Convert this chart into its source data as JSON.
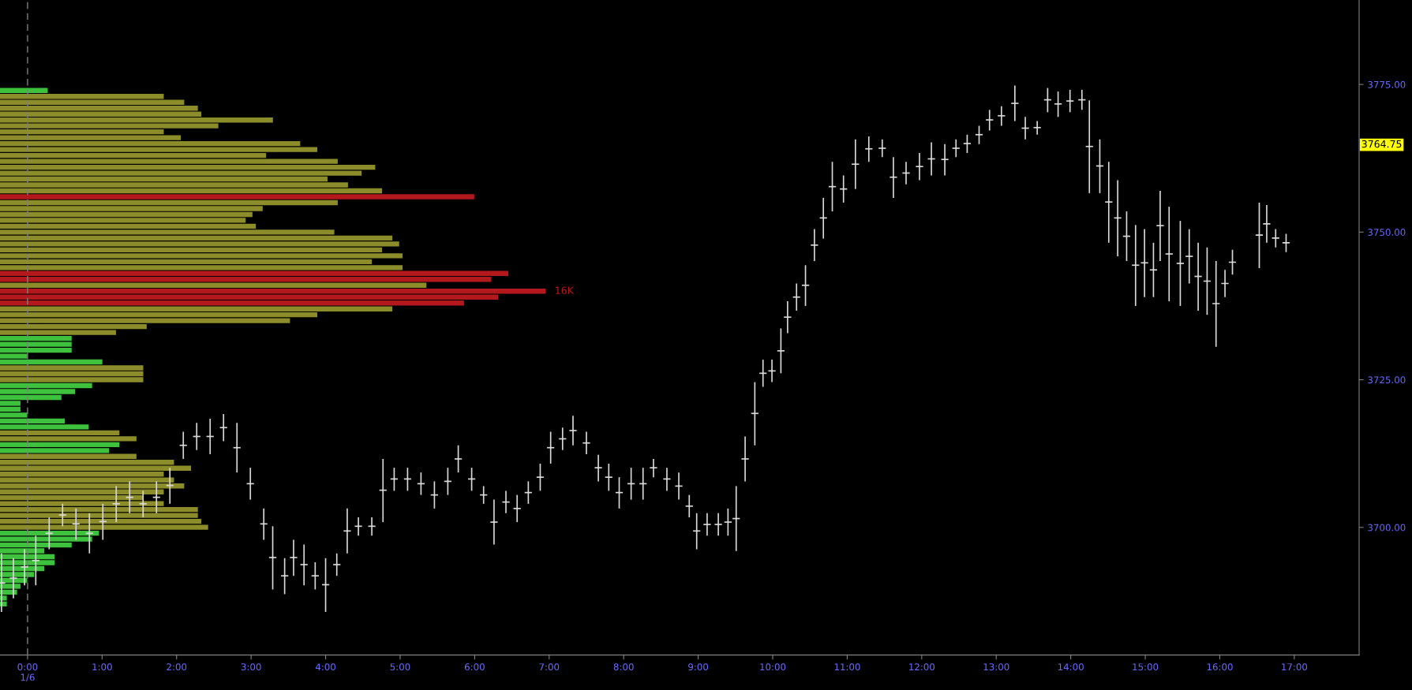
{
  "chart_data": [
    {
      "type": "candlestick",
      "color": "#d9d9d9",
      "x": [
        -0.35,
        -0.19,
        -0.04,
        0.11,
        0.29,
        0.47,
        0.65,
        0.83,
        1.01,
        1.19,
        1.37,
        1.55,
        1.73,
        1.91,
        2.09,
        2.27,
        2.45,
        2.63,
        2.81,
        2.99,
        3.17,
        3.29,
        3.45,
        3.57,
        3.71,
        3.86,
        4.0,
        4.15,
        4.29,
        4.44,
        4.62,
        4.77,
        4.92,
        5.1,
        5.28,
        5.46,
        5.64,
        5.78,
        5.96,
        6.12,
        6.26,
        6.42,
        6.57,
        6.72,
        6.88,
        7.02,
        7.18,
        7.32,
        7.5,
        7.66,
        7.8,
        7.94,
        8.1,
        8.26,
        8.4,
        8.58,
        8.74,
        8.88,
        8.98,
        9.12,
        9.27,
        9.4,
        9.51,
        9.63,
        9.76,
        9.87,
        9.99,
        10.11,
        10.2,
        10.32,
        10.44,
        10.56,
        10.68,
        10.8,
        10.95,
        11.11,
        11.29,
        11.47,
        11.62,
        11.79,
        11.97,
        12.13,
        12.31,
        12.46,
        12.61,
        12.77,
        12.91,
        13.07,
        13.25,
        13.39,
        13.55,
        13.69,
        13.83,
        13.99,
        14.15,
        14.25,
        14.39,
        14.51,
        14.63,
        14.75,
        14.87,
        14.99,
        15.11,
        15.2,
        15.32,
        15.47,
        15.59,
        15.71,
        15.83,
        15.95,
        16.07,
        16.17,
        16.53,
        16.63,
        16.75,
        16.89
      ],
      "ohlc": [
        [
          3690.6,
          3695.6,
          3685.7,
          3690.6
        ],
        [
          3691.4,
          3694.8,
          3688.0,
          3691.4
        ],
        [
          3693.3,
          3696.3,
          3690.2,
          3693.3
        ],
        [
          3694.4,
          3698.6,
          3690.2,
          3694.4
        ],
        [
          3699.0,
          3701.7,
          3696.3,
          3699.0
        ],
        [
          3702.1,
          3704.0,
          3700.2,
          3702.1
        ],
        [
          3700.6,
          3703.2,
          3697.9,
          3700.6
        ],
        [
          3699.0,
          3702.4,
          3695.6,
          3699.0
        ],
        [
          3701.0,
          3704.0,
          3697.9,
          3701.0
        ],
        [
          3704.0,
          3707.0,
          3700.9,
          3704.0
        ],
        [
          3705.1,
          3707.8,
          3702.4,
          3705.1
        ],
        [
          3704.0,
          3706.2,
          3701.7,
          3704.0
        ],
        [
          3705.1,
          3707.8,
          3702.4,
          3705.1
        ],
        [
          3707.1,
          3710.1,
          3704.0,
          3707.1
        ],
        [
          3713.9,
          3716.2,
          3711.6,
          3713.9
        ],
        [
          3715.4,
          3717.7,
          3713.1,
          3715.4
        ],
        [
          3715.4,
          3718.4,
          3712.4,
          3715.4
        ],
        [
          3716.9,
          3719.2,
          3714.6,
          3716.9
        ],
        [
          3713.5,
          3717.7,
          3709.3,
          3713.5
        ],
        [
          3707.4,
          3710.1,
          3704.7,
          3707.4
        ],
        [
          3700.6,
          3703.2,
          3697.9,
          3700.6
        ],
        [
          3694.9,
          3700.2,
          3689.5,
          3694.9
        ],
        [
          3691.8,
          3694.8,
          3688.7,
          3691.8
        ],
        [
          3694.9,
          3697.9,
          3691.8,
          3694.9
        ],
        [
          3693.7,
          3697.1,
          3690.2,
          3693.7
        ],
        [
          3691.8,
          3694.1,
          3689.5,
          3691.8
        ],
        [
          3690.3,
          3694.8,
          3685.7,
          3690.3
        ],
        [
          3693.7,
          3695.6,
          3691.8,
          3693.7
        ],
        [
          3699.4,
          3703.2,
          3695.6,
          3699.4
        ],
        [
          3700.2,
          3701.7,
          3698.6,
          3700.2
        ],
        [
          3700.2,
          3701.7,
          3698.6,
          3700.2
        ],
        [
          3706.3,
          3711.6,
          3700.9,
          3706.3
        ],
        [
          3708.2,
          3710.1,
          3706.2,
          3708.2
        ],
        [
          3708.2,
          3710.1,
          3706.2,
          3708.2
        ],
        [
          3707.4,
          3709.3,
          3705.5,
          3707.4
        ],
        [
          3705.5,
          3707.8,
          3703.2,
          3705.5
        ],
        [
          3707.8,
          3710.1,
          3705.5,
          3707.8
        ],
        [
          3711.6,
          3713.9,
          3709.3,
          3711.6
        ],
        [
          3708.2,
          3710.1,
          3706.2,
          3708.2
        ],
        [
          3705.5,
          3707.0,
          3704.0,
          3705.5
        ],
        [
          3700.9,
          3704.7,
          3697.1,
          3700.9
        ],
        [
          3704.3,
          3706.2,
          3702.4,
          3704.3
        ],
        [
          3703.2,
          3705.5,
          3700.9,
          3703.2
        ],
        [
          3705.9,
          3707.8,
          3704.0,
          3705.9
        ],
        [
          3708.5,
          3710.8,
          3706.2,
          3708.5
        ],
        [
          3713.5,
          3716.2,
          3710.8,
          3713.5
        ],
        [
          3715.0,
          3716.9,
          3713.1,
          3715.0
        ],
        [
          3716.4,
          3718.9,
          3713.9,
          3716.4
        ],
        [
          3714.3,
          3716.2,
          3712.4,
          3714.3
        ],
        [
          3710.1,
          3712.3,
          3707.8,
          3710.1
        ],
        [
          3708.5,
          3710.8,
          3706.2,
          3708.5
        ],
        [
          3705.9,
          3708.5,
          3703.2,
          3705.9
        ],
        [
          3707.4,
          3710.1,
          3704.7,
          3707.4
        ],
        [
          3707.4,
          3710.1,
          3704.7,
          3707.4
        ],
        [
          3710.1,
          3711.6,
          3708.5,
          3710.1
        ],
        [
          3708.2,
          3710.1,
          3706.2,
          3708.2
        ],
        [
          3707.0,
          3709.3,
          3704.7,
          3707.0
        ],
        [
          3703.6,
          3705.5,
          3701.7,
          3703.6
        ],
        [
          3699.4,
          3702.4,
          3696.3,
          3699.4
        ],
        [
          3700.5,
          3702.4,
          3698.6,
          3700.5
        ],
        [
          3700.5,
          3702.4,
          3698.6,
          3700.5
        ],
        [
          3700.9,
          3703.2,
          3698.6,
          3700.9
        ],
        [
          3701.5,
          3707.0,
          3696.0,
          3701.5
        ],
        [
          3711.6,
          3715.4,
          3707.8,
          3711.6
        ],
        [
          3719.3,
          3724.6,
          3713.9,
          3719.3
        ],
        [
          3726.1,
          3728.4,
          3723.8,
          3726.1
        ],
        [
          3726.5,
          3728.4,
          3724.6,
          3726.5
        ],
        [
          3729.9,
          3733.7,
          3726.1,
          3729.9
        ],
        [
          3735.6,
          3738.3,
          3732.9,
          3735.6
        ],
        [
          3739.0,
          3741.3,
          3736.7,
          3739.0
        ],
        [
          3741.0,
          3744.4,
          3737.5,
          3741.0
        ],
        [
          3747.8,
          3750.5,
          3745.1,
          3747.8
        ],
        [
          3752.4,
          3755.8,
          3748.9,
          3752.4
        ],
        [
          3757.7,
          3761.9,
          3753.5,
          3757.7
        ],
        [
          3757.3,
          3759.6,
          3755.0,
          3757.3
        ],
        [
          3761.5,
          3765.7,
          3757.3,
          3761.5
        ],
        [
          3764.1,
          3766.2,
          3761.9,
          3764.1
        ],
        [
          3764.2,
          3765.7,
          3762.7,
          3764.2
        ],
        [
          3759.3,
          3762.7,
          3755.8,
          3759.3
        ],
        [
          3760.0,
          3761.9,
          3758.1,
          3760.0
        ],
        [
          3761.1,
          3763.4,
          3758.8,
          3761.1
        ],
        [
          3762.4,
          3765.2,
          3759.6,
          3762.4
        ],
        [
          3762.3,
          3764.9,
          3759.6,
          3762.3
        ],
        [
          3764.2,
          3765.7,
          3762.7,
          3764.2
        ],
        [
          3765.0,
          3766.5,
          3763.4,
          3765.0
        ],
        [
          3766.5,
          3768.0,
          3764.9,
          3766.5
        ],
        [
          3769.0,
          3770.7,
          3767.2,
          3769.0
        ],
        [
          3769.7,
          3771.3,
          3768.0,
          3769.7
        ],
        [
          3771.8,
          3774.8,
          3768.8,
          3771.8
        ],
        [
          3767.6,
          3769.5,
          3765.7,
          3767.6
        ],
        [
          3767.7,
          3768.8,
          3766.5,
          3767.7
        ],
        [
          3772.4,
          3774.4,
          3770.3,
          3772.4
        ],
        [
          3771.7,
          3773.8,
          3769.5,
          3771.7
        ],
        [
          3772.2,
          3774.1,
          3770.3,
          3772.2
        ],
        [
          3772.4,
          3774.1,
          3770.7,
          3772.4
        ],
        [
          3764.5,
          3772.3,
          3756.6,
          3764.5
        ],
        [
          3761.2,
          3765.7,
          3756.6,
          3761.2
        ],
        [
          3755.1,
          3761.9,
          3748.2,
          3755.1
        ],
        [
          3752.4,
          3758.8,
          3745.9,
          3752.4
        ],
        [
          3749.3,
          3753.5,
          3745.1,
          3749.3
        ],
        [
          3744.4,
          3751.2,
          3737.5,
          3744.4
        ],
        [
          3744.8,
          3750.5,
          3739.0,
          3744.8
        ],
        [
          3743.6,
          3748.2,
          3739.0,
          3743.6
        ],
        [
          3751.1,
          3757.0,
          3745.1,
          3751.1
        ],
        [
          3746.3,
          3754.3,
          3738.3,
          3746.3
        ],
        [
          3744.7,
          3751.9,
          3737.5,
          3744.7
        ],
        [
          3745.9,
          3750.5,
          3741.3,
          3745.9
        ],
        [
          3742.5,
          3748.2,
          3736.7,
          3742.5
        ],
        [
          3741.7,
          3747.4,
          3736.0,
          3741.7
        ],
        [
          3737.9,
          3745.1,
          3730.6,
          3737.9
        ],
        [
          3741.3,
          3743.6,
          3739.0,
          3741.3
        ],
        [
          3744.9,
          3747.0,
          3742.8,
          3744.9
        ],
        [
          3749.5,
          3755.0,
          3743.9,
          3749.5
        ],
        [
          3751.4,
          3754.6,
          3748.2,
          3751.4
        ],
        [
          3749.0,
          3750.5,
          3747.4,
          3749.0
        ],
        [
          3748.2,
          3749.7,
          3746.6,
          3748.2
        ]
      ],
      "xlim": [
        -0.37,
        17.87
      ],
      "ylim": [
        3678.4,
        3789.3
      ],
      "xticks": [
        {
          "value": 0,
          "label": "0:00\n1/6"
        },
        {
          "value": 1,
          "label": "1:00"
        },
        {
          "value": 2,
          "label": "2:00"
        },
        {
          "value": 3,
          "label": "3:00"
        },
        {
          "value": 4,
          "label": "4:00"
        },
        {
          "value": 5,
          "label": "5:00"
        },
        {
          "value": 6,
          "label": "6:00"
        },
        {
          "value": 7,
          "label": "7:00"
        },
        {
          "value": 8,
          "label": "8:00"
        },
        {
          "value": 9,
          "label": "9:00"
        },
        {
          "value": 10,
          "label": "10:00"
        },
        {
          "value": 11,
          "label": "11:00"
        },
        {
          "value": 12,
          "label": "12:00"
        },
        {
          "value": 13,
          "label": "13:00"
        },
        {
          "value": 14,
          "label": "14:00"
        },
        {
          "value": 15,
          "label": "15:00"
        },
        {
          "value": 16,
          "label": "16:00"
        },
        {
          "value": 17,
          "label": "17:00"
        }
      ],
      "yticks": [
        {
          "value": 3700,
          "label": "3700.00"
        },
        {
          "value": 3725,
          "label": "3725.00"
        },
        {
          "value": 3750,
          "label": "3750.00"
        },
        {
          "value": 3775,
          "label": "3775.00"
        }
      ],
      "ref_lines": [
        {
          "axis": "x",
          "value": 0,
          "color": "#808080",
          "line_style": "dashed"
        }
      ],
      "annotations": [
        "3764.75"
      ]
    },
    {
      "type": "bar",
      "orientation": "horizontal",
      "categories": [
        null,
        null,
        null,
        null,
        null,
        null,
        null,
        null,
        null,
        null,
        null,
        null,
        null,
        null,
        null,
        null,
        null,
        null,
        null,
        null,
        null,
        null,
        null,
        null,
        null,
        null,
        null,
        null,
        null,
        null,
        null,
        null,
        null,
        null,
        null,
        null,
        null,
        null,
        null,
        null,
        null,
        null,
        null,
        null,
        null,
        null,
        null,
        null,
        null,
        null,
        null,
        null,
        null,
        null,
        null,
        null,
        null,
        null,
        null,
        null,
        null,
        null,
        null,
        null,
        null,
        null,
        null,
        null,
        null,
        null,
        null,
        null,
        null,
        null,
        null,
        null,
        null,
        null,
        null,
        null,
        null,
        null,
        null,
        null,
        null,
        null,
        null,
        null
      ],
      "values": [
        1400,
        4800,
        5400,
        5800,
        5900,
        8000,
        6400,
        4800,
        5300,
        8800,
        9300,
        7800,
        9900,
        11000,
        10600,
        9600,
        10200,
        11200,
        13900,
        9900,
        7700,
        7400,
        7200,
        7500,
        9800,
        11500,
        11700,
        11200,
        11800,
        10900,
        11800,
        14900,
        14400,
        12500,
        16000,
        14600,
        13600,
        11500,
        9300,
        8500,
        4300,
        3400,
        2100,
        2100,
        2100,
        800,
        3000,
        4200,
        4200,
        4200,
        2700,
        2200,
        1800,
        600,
        600,
        800,
        1900,
        2600,
        3500,
        4000,
        3500,
        3200,
        4000,
        5100,
        5600,
        4800,
        5100,
        5400,
        4800,
        4200,
        4800,
        5800,
        5800,
        5900,
        6100,
        2900,
        2700,
        2100,
        1300,
        1600,
        1600,
        1300,
        1000,
        800,
        600,
        500,
        200,
        200
      ],
      "colors": [
        "#3ec23e",
        "#8c8c2a",
        "#8c8c2a",
        "#8c8c2a",
        "#8c8c2a",
        "#8c8c2a",
        "#8c8c2a",
        "#8c8c2a",
        "#8c8c2a",
        "#8c8c2a",
        "#8c8c2a",
        "#8c8c2a",
        "#8c8c2a",
        "#8c8c2a",
        "#8c8c2a",
        "#8c8c2a",
        "#8c8c2a",
        "#8c8c2a",
        "#b3191c",
        "#8c8c2a",
        "#8c8c2a",
        "#8c8c2a",
        "#8c8c2a",
        "#8c8c2a",
        "#8c8c2a",
        "#8c8c2a",
        "#8c8c2a",
        "#8c8c2a",
        "#8c8c2a",
        "#8c8c2a",
        "#8c8c2a",
        "#b3191c",
        "#b3191c",
        "#8c8c2a",
        "#b3191c",
        "#b3191c",
        "#b3191c",
        "#8c8c2a",
        "#8c8c2a",
        "#8c8c2a",
        "#8c8c2a",
        "#8c8c2a",
        "#3ec23e",
        "#3ec23e",
        "#3ec23e",
        "#3ec23e",
        "#3ec23e",
        "#8c8c2a",
        "#8c8c2a",
        "#8c8c2a",
        "#3ec23e",
        "#3ec23e",
        "#3ec23e",
        "#3ec23e",
        "#3ec23e",
        "#3ec23e",
        "#3ec23e",
        "#3ec23e",
        "#8c8c2a",
        "#8c8c2a",
        "#3ec23e",
        "#3ec23e",
        "#8c8c2a",
        "#8c8c2a",
        "#8c8c2a",
        "#8c8c2a",
        "#8c8c2a",
        "#8c8c2a",
        "#8c8c2a",
        "#8c8c2a",
        "#8c8c2a",
        "#8c8c2a",
        "#8c8c2a",
        "#8c8c2a",
        "#8c8c2a",
        "#3ec23e",
        "#3ec23e",
        "#3ec23e",
        "#3ec23e",
        "#3ec23e",
        "#3ec23e",
        "#3ec23e",
        "#3ec23e",
        "#3ec23e",
        "#3ec23e",
        "#3ec23e",
        "#3ec23e",
        "#3ec23e"
      ],
      "value_labels": [
        null,
        null,
        null,
        null,
        null,
        null,
        null,
        null,
        null,
        null,
        null,
        null,
        null,
        null,
        null,
        null,
        null,
        null,
        null,
        null,
        null,
        null,
        null,
        null,
        null,
        null,
        null,
        null,
        null,
        null,
        null,
        null,
        null,
        null,
        "16K",
        null,
        null,
        null,
        null,
        null,
        null,
        null,
        null,
        null,
        null,
        null,
        null,
        null,
        null,
        null,
        null,
        null,
        null,
        null,
        null,
        null,
        null,
        null,
        null,
        null,
        null,
        null,
        null,
        null,
        null,
        null,
        null,
        null,
        null,
        null,
        null,
        null,
        null,
        null,
        null,
        null,
        null,
        null,
        null,
        null,
        null,
        null,
        null,
        null,
        null,
        null,
        null,
        null
      ]
    }
  ]
}
